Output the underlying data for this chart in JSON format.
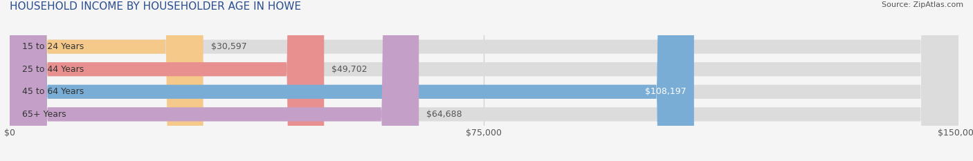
{
  "title": "HOUSEHOLD INCOME BY HOUSEHOLDER AGE IN HOWE",
  "source": "Source: ZipAtlas.com",
  "categories": [
    "15 to 24 Years",
    "25 to 44 Years",
    "45 to 64 Years",
    "65+ Years"
  ],
  "values": [
    30597,
    49702,
    108197,
    64688
  ],
  "bar_colors": [
    "#f5c98a",
    "#e89090",
    "#7aadd6",
    "#c4a0c8"
  ],
  "bar_bg_color": "#dcdcdc",
  "label_colors": [
    "#555555",
    "#555555",
    "#ffffff",
    "#555555"
  ],
  "xlim": [
    0,
    150000
  ],
  "xticks": [
    0,
    75000,
    150000
  ],
  "xtick_labels": [
    "$0",
    "$75,000",
    "$150,000"
  ],
  "bar_height": 0.62,
  "figsize": [
    14.06,
    2.33
  ],
  "dpi": 100,
  "title_fontsize": 11,
  "tick_fontsize": 9,
  "label_fontsize": 9,
  "category_fontsize": 9,
  "background_color": "#f5f5f5",
  "title_color": "#2a4d8f"
}
